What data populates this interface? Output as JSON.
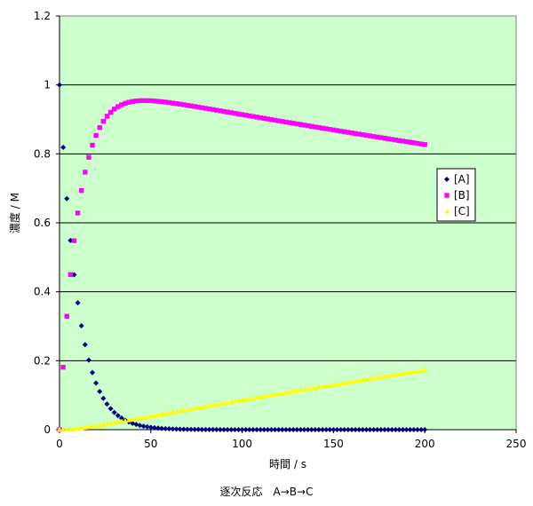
{
  "chart_data": {
    "type": "scatter",
    "title": "",
    "caption": "逐次反応　A→B→C",
    "xlabel": "時間 / s",
    "ylabel": "濃度 / M",
    "xlim": [
      0,
      250
    ],
    "ylim": [
      0,
      1.2
    ],
    "x_ticks": [
      "0",
      "50",
      "100",
      "150",
      "200",
      "250"
    ],
    "y_ticks": [
      "0",
      "0.2",
      "0.4",
      "0.6",
      "0.8",
      "1",
      "1.2"
    ],
    "grid": "horizontal",
    "legend_position": "right",
    "plot_background": "#ccffcc",
    "k1": 0.1,
    "k2": 0.001,
    "x_step": 2,
    "x_max": 200,
    "series": [
      {
        "name": "[A]",
        "color": "#000080",
        "marker": "diamond",
        "model": "A"
      },
      {
        "name": "[B]",
        "color": "#ff00ff",
        "marker": "square",
        "model": "B"
      },
      {
        "name": "[C]",
        "color": "#ffff00",
        "marker": "triangle",
        "model": "C"
      }
    ]
  }
}
